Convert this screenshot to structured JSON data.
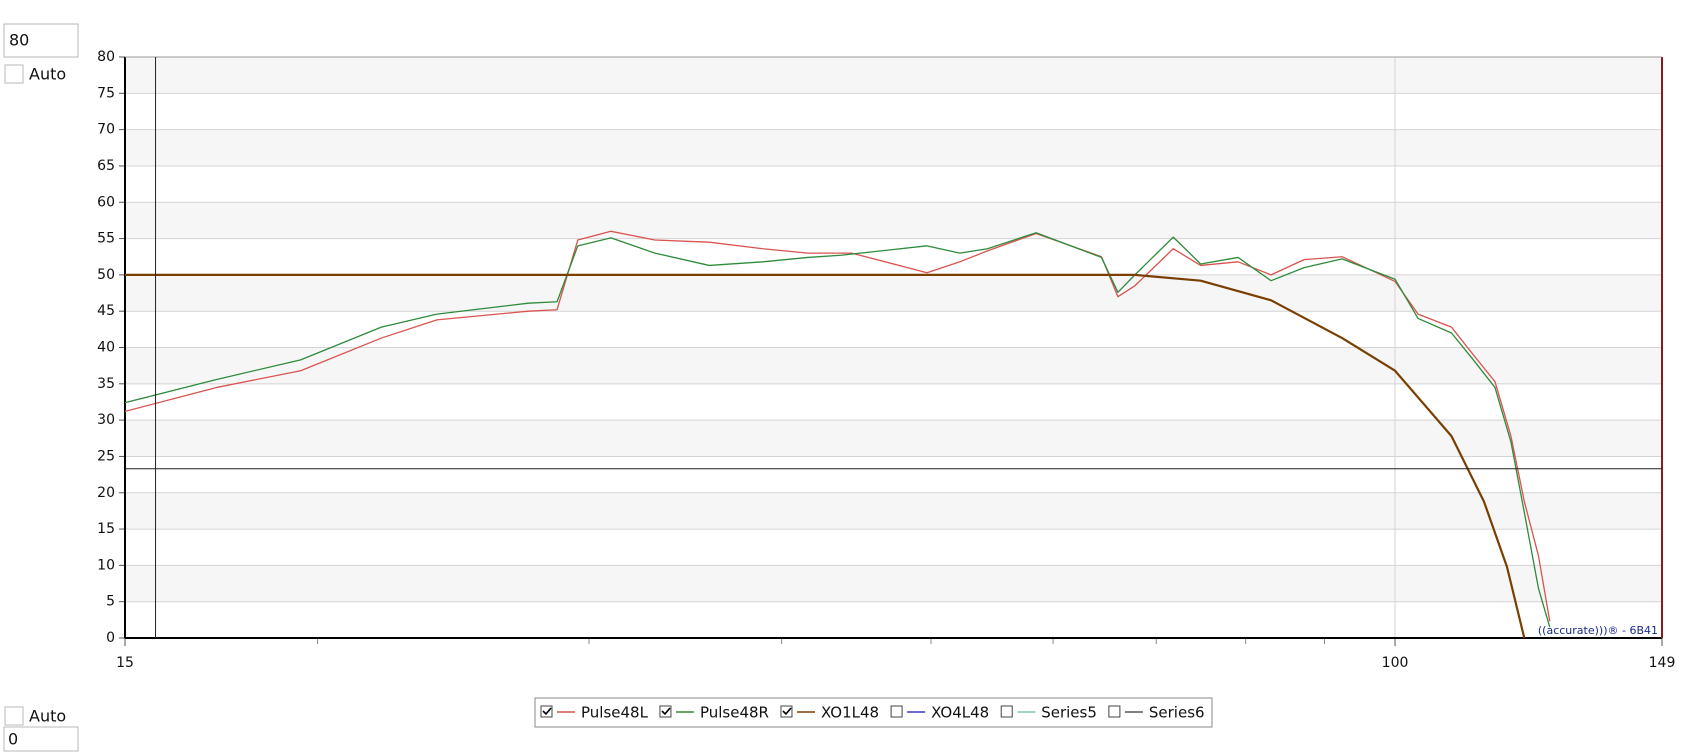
{
  "controls": {
    "y_max_input": "80",
    "y_auto": "Auto",
    "x_auto": "Auto",
    "x_min_input": "0"
  },
  "chart_data": {
    "type": "line",
    "x_scale": "log",
    "xlim": [
      15,
      149
    ],
    "xticks": [
      15,
      100,
      149
    ],
    "x_minor_ticks": [
      20,
      30,
      40,
      50,
      60,
      70,
      80,
      90
    ],
    "x_grid": [
      100
    ],
    "ylim": [
      0,
      80
    ],
    "yticks": [
      0,
      5,
      10,
      15,
      20,
      25,
      30,
      35,
      40,
      45,
      50,
      55,
      60,
      65,
      70,
      75,
      80
    ],
    "alternating_bands": true,
    "cursor": {
      "x": 15.7,
      "y": 23.3
    },
    "watermark": "((accurate)))® - 6B41",
    "series": [
      {
        "name": "Pulse48L",
        "color": "#d9534f",
        "visible": true,
        "x": [
          15,
          17.2,
          19.5,
          22.0,
          23.9,
          27.4,
          28.6,
          29.5,
          31.0,
          33.1,
          35.9,
          38.9,
          41.6,
          44.4,
          49.7,
          52.2,
          54.4,
          58.5,
          64.5,
          66.1,
          67.8,
          71.8,
          74.8,
          79.1,
          83.1,
          87.3,
          92.4,
          100,
          103.5,
          108.8,
          112.4,
          116.1,
          118.9,
          121.3,
          123.9,
          126.0
        ],
        "values": [
          31.2,
          34.5,
          36.8,
          41.3,
          43.8,
          45.0,
          45.2,
          54.8,
          56.0,
          54.8,
          54.5,
          53.6,
          53.0,
          53.0,
          50.3,
          51.8,
          53.3,
          55.7,
          52.5,
          47.0,
          48.5,
          53.6,
          51.3,
          51.8,
          50.0,
          52.1,
          52.5,
          49.1,
          44.6,
          42.8,
          39.0,
          35.3,
          27.8,
          18.8,
          11.3,
          2.3
        ]
      },
      {
        "name": "Pulse48R",
        "color": "#2e8b3a",
        "visible": true,
        "x": [
          15,
          17.2,
          19.5,
          22.0,
          23.9,
          27.4,
          28.6,
          29.5,
          31.0,
          33.1,
          35.9,
          38.9,
          41.6,
          43.7,
          49.7,
          52.2,
          54.4,
          58.5,
          64.5,
          66.1,
          67.8,
          71.8,
          74.8,
          79.1,
          83.1,
          87.3,
          92.4,
          100,
          103.5,
          108.8,
          112.4,
          116.1,
          118.9,
          121.3,
          123.9,
          126.0
        ],
        "values": [
          32.4,
          35.6,
          38.3,
          42.8,
          44.6,
          46.1,
          46.3,
          54.0,
          55.1,
          53.0,
          51.3,
          51.8,
          52.4,
          52.7,
          54.0,
          53.0,
          53.6,
          55.8,
          52.4,
          47.6,
          50.0,
          55.2,
          51.5,
          52.4,
          49.2,
          51.0,
          52.2,
          49.4,
          44.0,
          42.0,
          38.3,
          34.5,
          27.0,
          17.3,
          6.8,
          1.5
        ]
      },
      {
        "name": "XO1L48",
        "color": "#7a3e00",
        "visible": true,
        "x": [
          15,
          40,
          60,
          67.8,
          74.8,
          83.1,
          92.4,
          100,
          108.8,
          114.2,
          118.2,
          121.3
        ],
        "values": [
          50,
          50,
          50,
          50,
          49.2,
          46.5,
          41.3,
          36.8,
          27.8,
          18.8,
          9.8,
          0
        ]
      },
      {
        "name": "XO4L48",
        "color": "#3a3acc",
        "visible": false
      },
      {
        "name": "Series5",
        "color": "#7fc9a8",
        "visible": false
      },
      {
        "name": "Series6",
        "color": "#555555",
        "visible": false
      }
    ]
  }
}
